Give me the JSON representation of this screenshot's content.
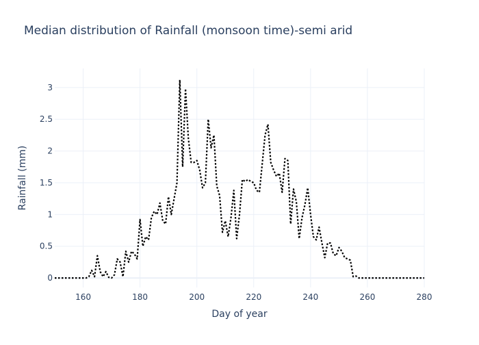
{
  "chart_data": {
    "type": "line",
    "title": "Median distribution of Rainfall (monsoon time)-semi arid",
    "xlabel": "Day of year",
    "ylabel": "Rainfall (mm)",
    "xlim": [
      150,
      280
    ],
    "ylim": [
      -0.15,
      3.3
    ],
    "x_ticks": [
      160,
      180,
      200,
      220,
      240,
      260,
      280
    ],
    "y_ticks": [
      0,
      0.5,
      1,
      1.5,
      2,
      2.5,
      3
    ],
    "y_tick_labels": [
      "0",
      "0.5",
      "1",
      "1.5",
      "2",
      "2.5",
      "3"
    ],
    "grid": true,
    "legend": "none",
    "series": [
      {
        "color": "#000000",
        "line_style": "dotted",
        "x": [
          150,
          151,
          152,
          153,
          154,
          155,
          156,
          157,
          158,
          159,
          160,
          161,
          162,
          163,
          164,
          165,
          166,
          167,
          168,
          169,
          170,
          171,
          172,
          173,
          174,
          175,
          176,
          177,
          178,
          179,
          180,
          181,
          182,
          183,
          184,
          185,
          186,
          187,
          188,
          189,
          190,
          191,
          192,
          193,
          194,
          195,
          196,
          197,
          198,
          199,
          200,
          201,
          202,
          203,
          204,
          205,
          206,
          207,
          208,
          209,
          210,
          211,
          212,
          213,
          214,
          215,
          216,
          217,
          218,
          219,
          220,
          221,
          222,
          223,
          224,
          225,
          226,
          227,
          228,
          229,
          230,
          231,
          232,
          233,
          234,
          235,
          236,
          237,
          238,
          239,
          240,
          241,
          242,
          243,
          244,
          245,
          246,
          247,
          248,
          249,
          250,
          251,
          252,
          253,
          254,
          255,
          256,
          257,
          258,
          259,
          260,
          261,
          262,
          263,
          264,
          265,
          266,
          267,
          268,
          269,
          270,
          271,
          272,
          273,
          274,
          275,
          276,
          277,
          278,
          279,
          280
        ],
        "y": [
          0,
          0,
          0,
          0,
          0,
          0,
          0,
          0,
          0,
          0,
          0,
          0,
          0.02,
          0.12,
          0.02,
          0.35,
          0.1,
          0.02,
          0.1,
          0.01,
          0,
          0.05,
          0.3,
          0.25,
          0.02,
          0.42,
          0.25,
          0.42,
          0.38,
          0.3,
          0.92,
          0.5,
          0.65,
          0.6,
          0.95,
          1.05,
          1.0,
          1.18,
          0.9,
          0.85,
          1.28,
          1.0,
          1.25,
          1.5,
          3.12,
          1.75,
          2.98,
          2.2,
          1.82,
          1.82,
          1.85,
          1.7,
          1.42,
          1.5,
          2.5,
          2.05,
          2.25,
          1.45,
          1.3,
          0.72,
          0.9,
          0.65,
          0.95,
          1.38,
          0.62,
          1.0,
          1.55,
          1.52,
          1.55,
          1.52,
          1.5,
          1.38,
          1.35,
          1.8,
          2.25,
          2.42,
          1.82,
          1.7,
          1.6,
          1.65,
          1.35,
          1.88,
          1.85,
          0.85,
          1.4,
          1.2,
          0.62,
          0.95,
          1.15,
          1.42,
          1.0,
          0.65,
          0.6,
          0.8,
          0.55,
          0.32,
          0.55,
          0.55,
          0.38,
          0.35,
          0.48,
          0.42,
          0.32,
          0.3,
          0.28,
          0.02,
          0.03,
          0,
          0,
          0,
          0,
          0,
          0,
          0,
          0,
          0,
          0,
          0,
          0,
          0,
          0,
          0,
          0,
          0,
          0,
          0,
          0,
          0,
          0,
          0,
          0
        ]
      }
    ]
  }
}
